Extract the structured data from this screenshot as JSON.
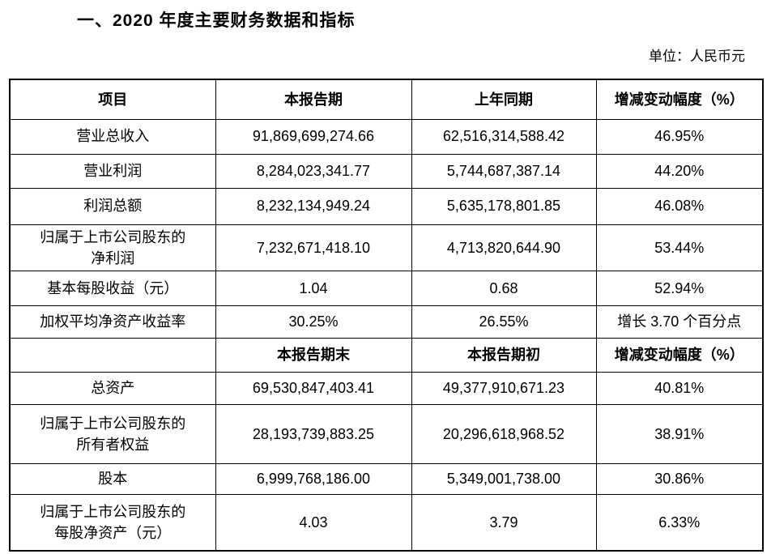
{
  "title": "一、2020 年度主要财务数据和指标",
  "unit_label": "单位：人民币元",
  "table": {
    "header_period": {
      "item": "项目",
      "current": "本报告期",
      "prior": "上年同期",
      "change": "增减变动幅度（%）"
    },
    "rows_period": [
      {
        "item": "营业总收入",
        "current": "91,869,699,274.66",
        "prior": "62,516,314,588.42",
        "change": "46.95%"
      },
      {
        "item": "营业利润",
        "current": "8,284,023,341.77",
        "prior": "5,744,687,387.14",
        "change": "44.20%"
      },
      {
        "item": "利润总额",
        "current": "8,232,134,949.24",
        "prior": "5,635,178,801.85",
        "change": "46.08%"
      },
      {
        "item": "归属于上市公司股东的\n净利润",
        "current": "7,232,671,418.10",
        "prior": "4,713,820,644.90",
        "change": "53.44%"
      },
      {
        "item": "基本每股收益（元）",
        "current": "1.04",
        "prior": "0.68",
        "change": "52.94%"
      },
      {
        "item": "加权平均净资产收益率",
        "current": "30.25%",
        "prior": "26.55%",
        "change": "增长 3.70 个百分点"
      }
    ],
    "header_balance": {
      "item": "",
      "end": "本报告期末",
      "begin": "本报告期初",
      "change": "增减变动幅度（%）"
    },
    "rows_balance": [
      {
        "item": "总资产",
        "end": "69,530,847,403.41",
        "begin": "49,377,910,671.23",
        "change": "40.81%"
      },
      {
        "item": "归属于上市公司股东的\n所有者权益",
        "end": "28,193,739,883.25",
        "begin": "20,296,618,968.52",
        "change": "38.91%"
      },
      {
        "item": "股本",
        "end": "6,999,768,186.00",
        "begin": "5,349,001,738.00",
        "change": "30.86%"
      },
      {
        "item": "归属于上市公司股东的\n每股净资产（元）",
        "end": "4.03",
        "begin": "3.79",
        "change": "6.33%"
      }
    ]
  }
}
